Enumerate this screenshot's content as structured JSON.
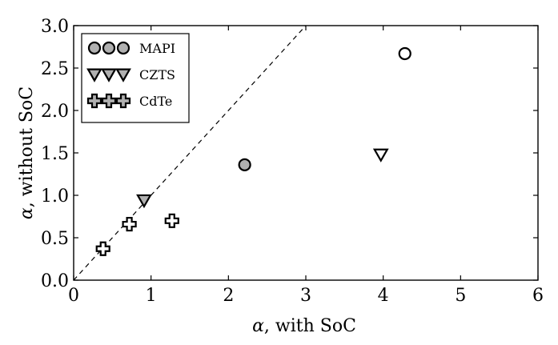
{
  "chart_data": {
    "type": "scatter",
    "xlabel": {
      "symbol": "α",
      "text": ", with SoC"
    },
    "ylabel": {
      "symbol": "α",
      "text": ", without SoC"
    },
    "xlim": [
      0,
      6
    ],
    "ylim": [
      0,
      3
    ],
    "x_ticks": [
      "0",
      "1",
      "2",
      "3",
      "4",
      "5",
      "6"
    ],
    "y_ticks": [
      "0.0",
      "0.5",
      "1.0",
      "1.5",
      "2.0",
      "2.5",
      "3.0"
    ],
    "grid": false,
    "legend_position": "top-left",
    "reference_line": {
      "style": "dashed",
      "from": [
        0,
        0
      ],
      "to": [
        3,
        3
      ]
    },
    "series": [
      {
        "name": "MAPI",
        "marker": "circle",
        "points": [
          {
            "x": 2.21,
            "y": 1.36,
            "fill": "#b0b0b0"
          },
          {
            "x": 4.28,
            "y": 2.67,
            "fill": "#ffffff"
          }
        ]
      },
      {
        "name": "CZTS",
        "marker": "triangle-down",
        "points": [
          {
            "x": 0.91,
            "y": 0.94,
            "fill": "#b0b0b0"
          },
          {
            "x": 3.97,
            "y": 1.48,
            "fill": "#ffffff"
          }
        ]
      },
      {
        "name": "CdTe",
        "marker": "plus",
        "points": [
          {
            "x": 0.38,
            "y": 0.37,
            "fill": "#ffffff"
          },
          {
            "x": 0.72,
            "y": 0.66,
            "fill": "#ffffff"
          },
          {
            "x": 1.27,
            "y": 0.7,
            "fill": "#ffffff"
          }
        ]
      }
    ],
    "legend_marker_fill": "#b0b0b0"
  }
}
